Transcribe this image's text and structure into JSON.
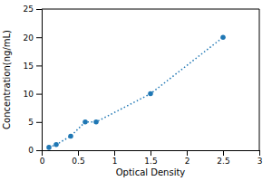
{
  "chart_data": {
    "type": "line",
    "xlabel": "Optical Density",
    "ylabel": "Concentration(ng/mL)",
    "x": [
      0.1,
      0.2,
      0.4,
      0.6,
      0.75,
      1.5,
      2.5
    ],
    "values": [
      0.5,
      1.0,
      2.5,
      5.0,
      5.0,
      10.0,
      20.0
    ],
    "xlim": [
      0,
      3
    ],
    "ylim": [
      0,
      25
    ],
    "xticks": [
      0,
      0.5,
      1,
      1.5,
      2,
      2.5,
      3
    ],
    "yticks": [
      0,
      5,
      10,
      15,
      20,
      25
    ],
    "line_style": "dotted",
    "marker": "circle"
  }
}
